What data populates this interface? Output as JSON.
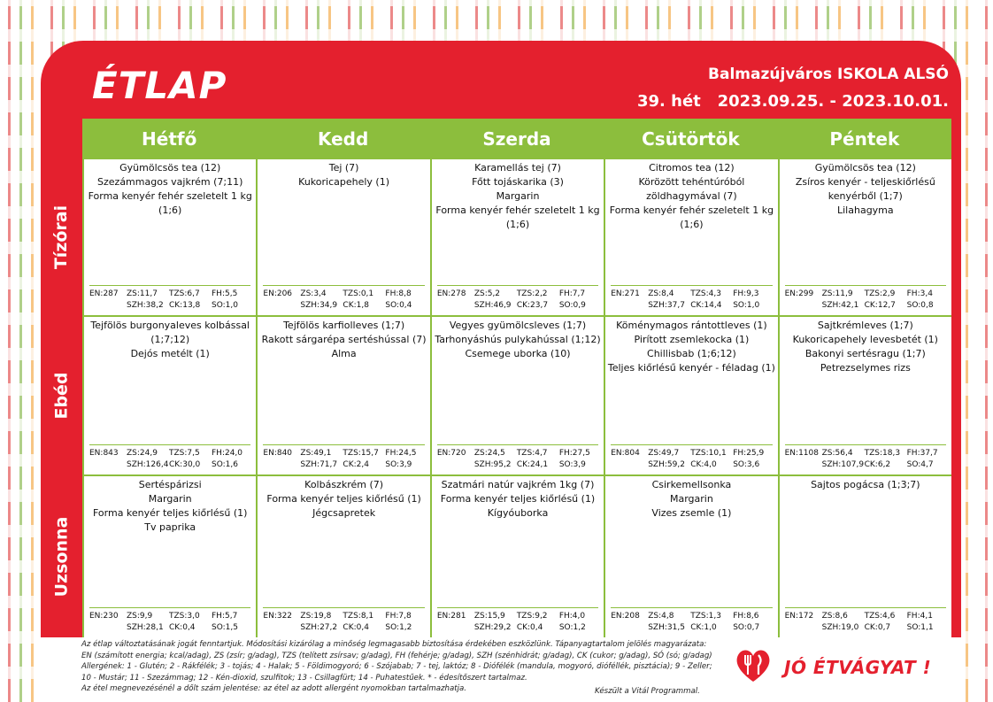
{
  "header": {
    "logo": "ÉTLAP",
    "school": "Balmazújváros  ISKOLA ALSÓ",
    "week": "39. hét   2023.09.25. - 2023.10.01."
  },
  "days": [
    "Hétfő",
    "Kedd",
    "Szerda",
    "Csütörtök",
    "Péntek"
  ],
  "meals": [
    {
      "label": "Tízórai",
      "cells": [
        {
          "items": [
            "Gyümölcsös tea (12)",
            "Szezámmagos vajkrém (7;11)",
            "Forma kenyér fehér szeletelt 1 kg",
            "(1;6)"
          ],
          "n1": [
            "EN:287",
            "ZS:11,7",
            "TZS:6,7",
            "FH:5,5"
          ],
          "n2": [
            "",
            "SZH:38,2",
            "CK:13,8",
            "SO:1,0"
          ]
        },
        {
          "items": [
            "Tej  (7)",
            "Kukoricapehely (1)"
          ],
          "n1": [
            "EN:206",
            "ZS:3,4",
            "TZS:0,1",
            "FH:8,8"
          ],
          "n2": [
            "",
            "SZH:34,9",
            "CK:1,8",
            "SO:0,4"
          ]
        },
        {
          "items": [
            "Karamellás tej (7)",
            "Főtt tojáskarika (3)",
            "Margarin",
            "Forma kenyér fehér szeletelt 1 kg",
            "(1;6)"
          ],
          "n1": [
            "EN:278",
            "ZS:5,2",
            "TZS:2,2",
            "FH:7,7"
          ],
          "n2": [
            "",
            "SZH:46,9",
            "CK:23,7",
            "SO:0,9"
          ]
        },
        {
          "items": [
            "Citromos tea (12)",
            "Körözött tehéntúróból",
            "zöldhagymával (7)",
            "Forma kenyér fehér szeletelt 1 kg",
            "(1;6)"
          ],
          "n1": [
            "EN:271",
            "ZS:8,4",
            "TZS:4,3",
            "FH:9,3"
          ],
          "n2": [
            "",
            "SZH:37,7",
            "CK:14,4",
            "SO:1,0"
          ]
        },
        {
          "items": [
            "Gyümölcsös tea (12)",
            "Zsíros kenyér - teljeskiőrlésű",
            "kenyérből (1;7)",
            "Lilahagyma"
          ],
          "n1": [
            "EN:299",
            "ZS:11,9",
            "TZS:2,9",
            "FH:3,4"
          ],
          "n2": [
            "",
            "SZH:42,1",
            "CK:12,7",
            "SO:0,8"
          ]
        }
      ]
    },
    {
      "label": "Ebéd",
      "cells": [
        {
          "items": [
            "Tejfölös burgonyaleves kolbással",
            "(1;7;12)",
            "Dejós metélt (1)"
          ],
          "n1": [
            "EN:843",
            "ZS:24,9",
            "TZS:7,5",
            "FH:24,0"
          ],
          "n2": [
            "",
            "SZH:126,4",
            "CK:30,0",
            "SO:1,6"
          ]
        },
        {
          "items": [
            "Tejfölös karfiolleves (1;7)",
            "Rakott sárgarépa sertéshússal (7)",
            "Alma"
          ],
          "n1": [
            "EN:840",
            "ZS:49,1",
            "TZS:15,7",
            "FH:24,5"
          ],
          "n2": [
            "",
            "SZH:71,7",
            "CK:2,4",
            "SO:3,9"
          ]
        },
        {
          "items": [
            "Vegyes gyümölcsleves (1;7)",
            "Tarhonyáshús pulykahússal (1;12)",
            "Csemege uborka (10)"
          ],
          "n1": [
            "EN:720",
            "ZS:24,5",
            "TZS:4,7",
            "FH:27,5"
          ],
          "n2": [
            "",
            "SZH:95,2",
            "CK:24,1",
            "SO:3,9"
          ]
        },
        {
          "items": [
            "Köménymagos rántottleves (1)",
            "Pirított zsemlekocka  (1)",
            "Chillisbab (1;6;12)",
            "Teljes kiőrlésű kenyér - féladag (1)"
          ],
          "n1": [
            "EN:804",
            "ZS:49,7",
            "TZS:10,1",
            "FH:25,9"
          ],
          "n2": [
            "",
            "SZH:59,2",
            "CK:4,0",
            "SO:3,6"
          ]
        },
        {
          "items": [
            "Sajtkrémleves (1;7)",
            "Kukoricapehely levesbetét (1)",
            "Bakonyi sertésragu (1;7)",
            "Petrezselymes rizs"
          ],
          "n1": [
            "EN:1108",
            "ZS:56,4",
            "TZS:18,3",
            "FH:37,7"
          ],
          "n2": [
            "",
            "SZH:107,9",
            "CK:6,2",
            "SO:4,7"
          ]
        }
      ]
    },
    {
      "label": "Uzsonna",
      "cells": [
        {
          "items": [
            "Sertéspárizsi",
            "Margarin",
            "Forma kenyér teljes kiőrlésű (1)",
            "Tv paprika"
          ],
          "n1": [
            "EN:230",
            "ZS:9,9",
            "TZS:3,0",
            "FH:5,7"
          ],
          "n2": [
            "",
            "SZH:28,1",
            "CK:0,4",
            "SO:1,5"
          ]
        },
        {
          "items": [
            "Kolbászkrém (7)",
            "Forma kenyér teljes kiőrlésű (1)",
            "Jégcsapretek"
          ],
          "n1": [
            "EN:322",
            "ZS:19,8",
            "TZS:8,1",
            "FH:7,8"
          ],
          "n2": [
            "",
            "SZH:27,2",
            "CK:0,4",
            "SO:1,2"
          ]
        },
        {
          "items": [
            "Szatmári natúr vajkrém  1kg (7)",
            "Forma kenyér teljes kiőrlésű (1)",
            "Kígyóuborka"
          ],
          "n1": [
            "EN:281",
            "ZS:15,9",
            "TZS:9,2",
            "FH:4,0"
          ],
          "n2": [
            "",
            "SZH:29,2",
            "CK:0,4",
            "SO:1,2"
          ]
        },
        {
          "items": [
            "Csirkemellsonka",
            "Margarin",
            "Vizes zsemle (1)"
          ],
          "n1": [
            "EN:208",
            "ZS:4,8",
            "TZS:1,3",
            "FH:8,6"
          ],
          "n2": [
            "",
            "SZH:31,5",
            "CK:1,0",
            "SO:0,7"
          ]
        },
        {
          "items": [
            "Sajtos pogácsa (1;3;7)"
          ],
          "n1": [
            "EN:172",
            "ZS:8,6",
            "TZS:4,6",
            "FH:4,1"
          ],
          "n2": [
            "",
            "SZH:19,0",
            "CK:0,7",
            "SO:1,1"
          ]
        }
      ]
    }
  ],
  "footer": {
    "lines": [
      "Az étlap változtatásának jogát fenntartjuk. Módosítási kizárólag a minőség legmagasabb biztosítása érdekében eszközlünk. Tápanyagtartalom jelölés magyarázata:",
      "EN (számított energia; kcal/adag), ZS (zsír; g/adag), TZS (telített zsírsav; g/adag), FH (fehérje; g/adag), SZH (szénhidrát; g/adag), CK (cukor; g/adag), SÓ (só; g/adag)",
      "Allergének: 1 - Glutén; 2 - Rákfélék; 3 - tojás; 4 - Halak; 5 - Földimogyoró; 6 - Szójabab; 7 - tej, laktóz; 8 - Diófélék (mandula, mogyoró, dióféllék, pisztácia); 9 - Zeller;",
      "10 - Mustár; 11 - Szezámmag; 12 - Kén-dioxid, szulfitok; 13 - Csillagfürt; 14 - Puhatestűek. * - édesítőszert tartalmaz.",
      "Az étel megnevezésénél a dőlt szám jelentése: az étel az adott allergént nyomokban tartalmazhatja."
    ],
    "credit": "Készült a Vitál Programmal.",
    "slogan": "JÓ ÉTVÁGYAT !"
  },
  "colors": {
    "brand_red": "#e4202e",
    "accent_green": "#8cbe3d"
  }
}
